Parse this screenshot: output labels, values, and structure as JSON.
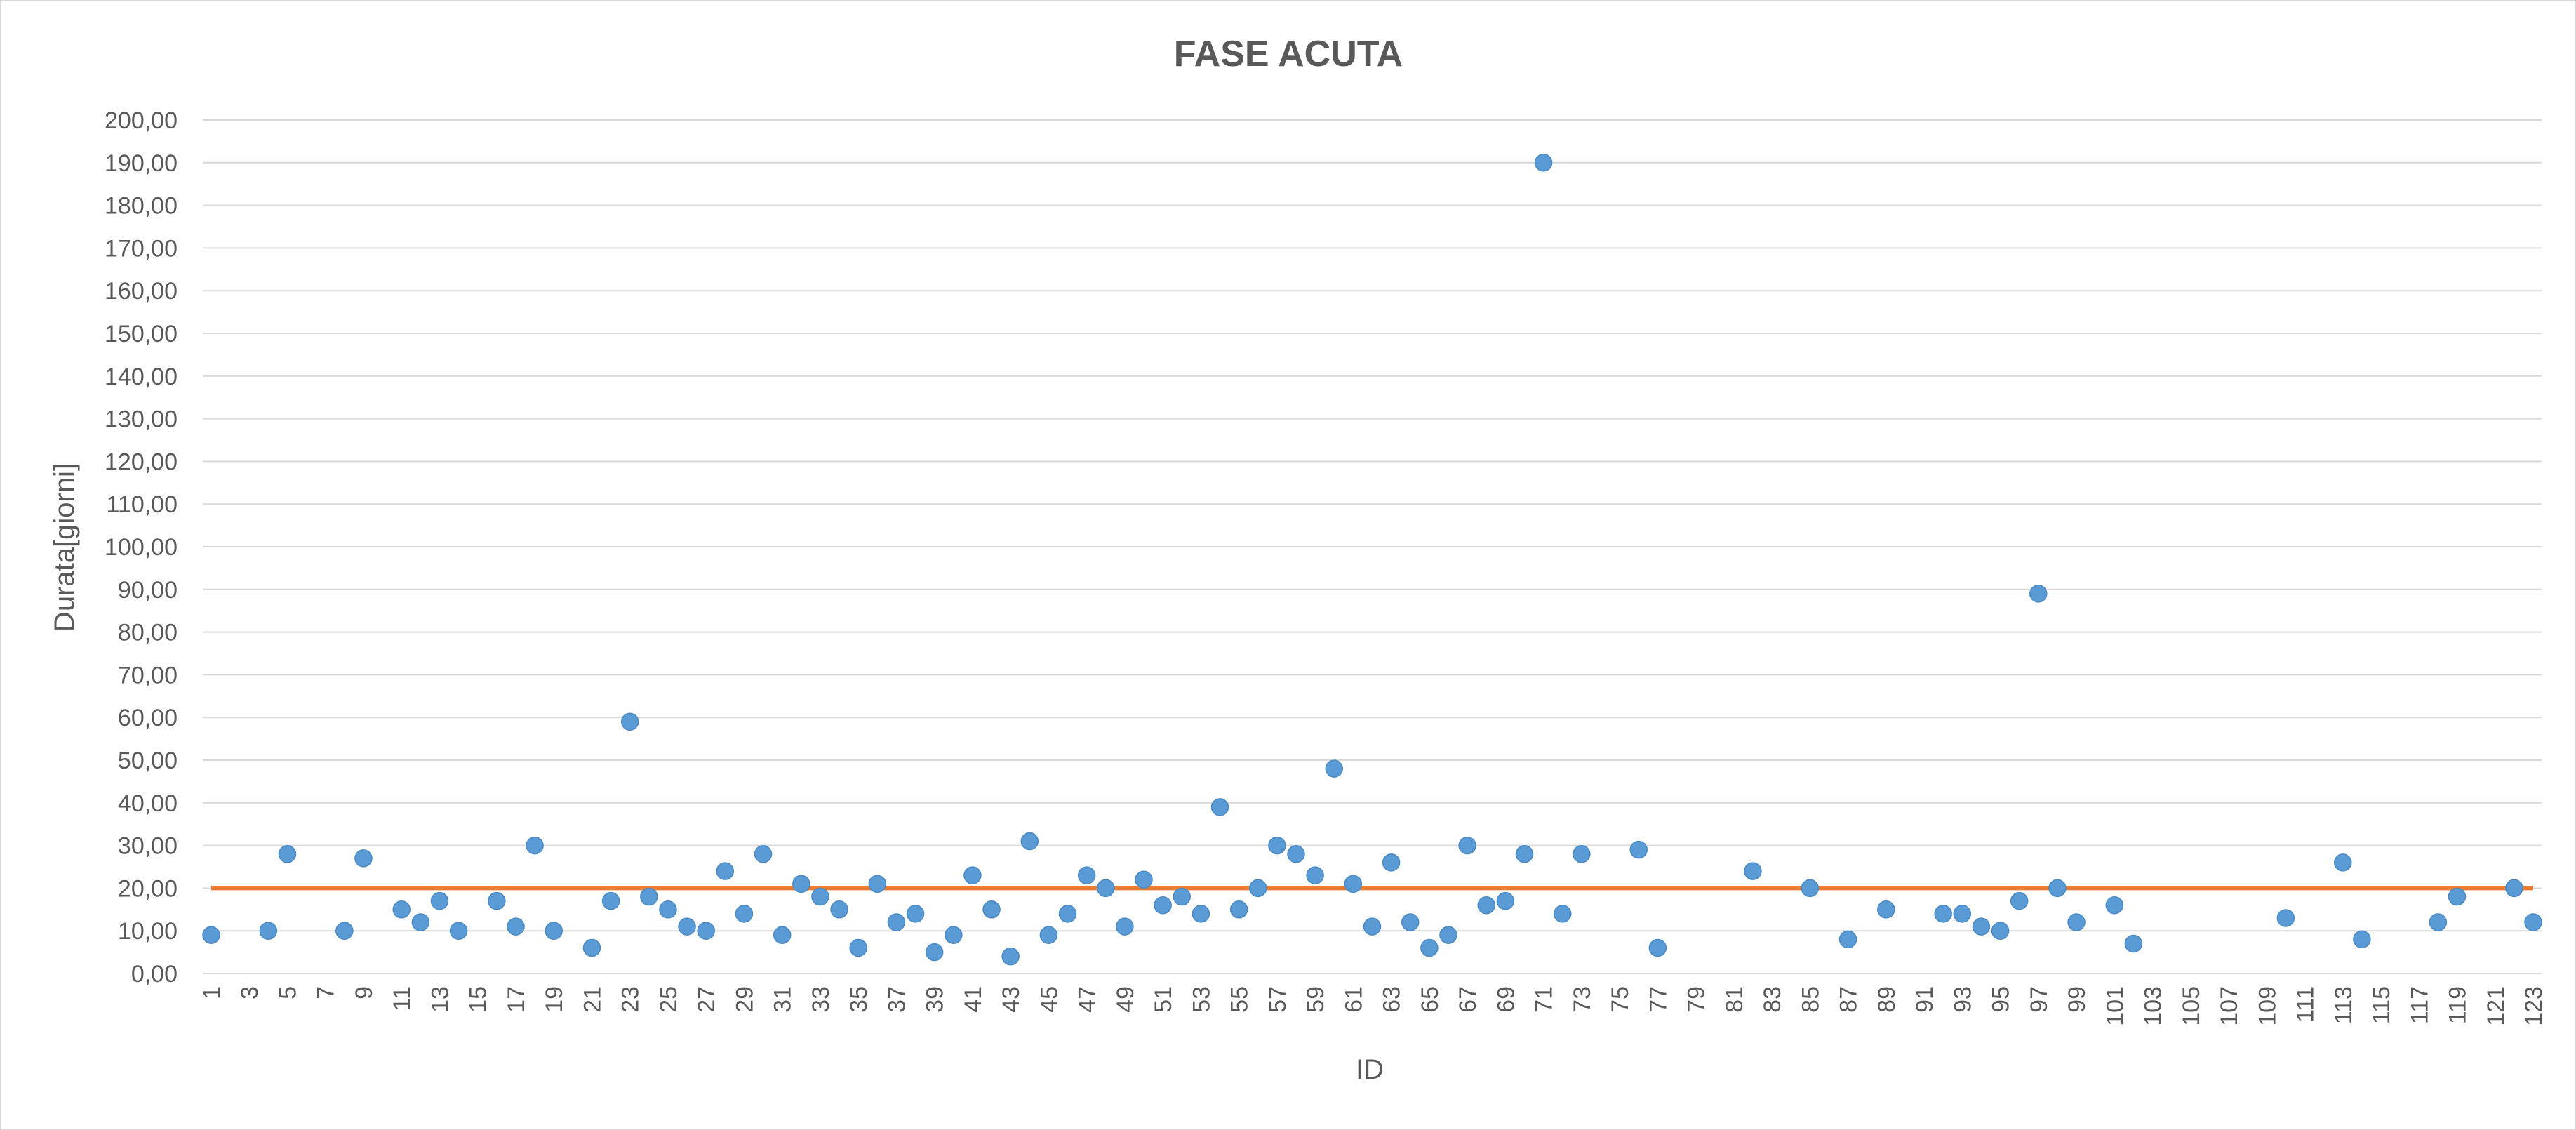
{
  "chart_data": {
    "type": "scatter",
    "title": "FASE ACUTA",
    "xlabel": "ID",
    "ylabel": "Durata[giorni]",
    "xlim": [
      1,
      123
    ],
    "ylim": [
      0,
      200
    ],
    "x_ticks": [
      1,
      3,
      5,
      7,
      9,
      11,
      13,
      15,
      17,
      19,
      21,
      23,
      25,
      27,
      29,
      31,
      33,
      35,
      37,
      39,
      41,
      43,
      45,
      47,
      49,
      51,
      53,
      55,
      57,
      59,
      61,
      63,
      65,
      67,
      69,
      71,
      73,
      75,
      77,
      79,
      81,
      83,
      85,
      87,
      89,
      91,
      93,
      95,
      97,
      99,
      101,
      103,
      105,
      107,
      109,
      111,
      113,
      115,
      117,
      119,
      121,
      123
    ],
    "y_ticks": [
      "0,00",
      "10,00",
      "20,00",
      "30,00",
      "40,00",
      "50,00",
      "60,00",
      "70,00",
      "80,00",
      "90,00",
      "100,00",
      "110,00",
      "120,00",
      "130,00",
      "140,00",
      "150,00",
      "160,00",
      "170,00",
      "180,00",
      "190,00",
      "200,00"
    ],
    "y_tick_values": [
      0,
      10,
      20,
      30,
      40,
      50,
      60,
      70,
      80,
      90,
      100,
      110,
      120,
      130,
      140,
      150,
      160,
      170,
      180,
      190,
      200
    ],
    "grid": true,
    "reference_line": {
      "y": 20,
      "color": "#ed7d31"
    },
    "marker_color": "#5b9bd5",
    "points": [
      [
        1,
        9
      ],
      [
        4,
        10
      ],
      [
        5,
        28
      ],
      [
        8,
        10
      ],
      [
        9,
        27
      ],
      [
        11,
        15
      ],
      [
        12,
        12
      ],
      [
        13,
        17
      ],
      [
        14,
        10
      ],
      [
        16,
        17
      ],
      [
        17,
        11
      ],
      [
        18,
        30
      ],
      [
        19,
        10
      ],
      [
        21,
        6
      ],
      [
        22,
        17
      ],
      [
        23,
        59
      ],
      [
        24,
        18
      ],
      [
        25,
        15
      ],
      [
        26,
        11
      ],
      [
        27,
        10
      ],
      [
        28,
        24
      ],
      [
        29,
        14
      ],
      [
        30,
        28
      ],
      [
        31,
        9
      ],
      [
        32,
        21
      ],
      [
        33,
        18
      ],
      [
        34,
        15
      ],
      [
        35,
        6
      ],
      [
        36,
        21
      ],
      [
        37,
        12
      ],
      [
        38,
        14
      ],
      [
        39,
        5
      ],
      [
        40,
        9
      ],
      [
        41,
        23
      ],
      [
        42,
        15
      ],
      [
        43,
        4
      ],
      [
        44,
        31
      ],
      [
        45,
        9
      ],
      [
        46,
        14
      ],
      [
        47,
        23
      ],
      [
        48,
        20
      ],
      [
        49,
        11
      ],
      [
        50,
        22
      ],
      [
        51,
        16
      ],
      [
        52,
        18
      ],
      [
        53,
        14
      ],
      [
        54,
        39
      ],
      [
        55,
        15
      ],
      [
        56,
        20
      ],
      [
        57,
        30
      ],
      [
        58,
        28
      ],
      [
        59,
        23
      ],
      [
        60,
        48
      ],
      [
        61,
        21
      ],
      [
        62,
        11
      ],
      [
        63,
        26
      ],
      [
        64,
        12
      ],
      [
        65,
        6
      ],
      [
        66,
        9
      ],
      [
        67,
        30
      ],
      [
        68,
        16
      ],
      [
        69,
        17
      ],
      [
        70,
        28
      ],
      [
        71,
        190
      ],
      [
        72,
        14
      ],
      [
        73,
        28
      ],
      [
        76,
        29
      ],
      [
        77,
        6
      ],
      [
        82,
        24
      ],
      [
        85,
        20
      ],
      [
        87,
        8
      ],
      [
        89,
        15
      ],
      [
        92,
        14
      ],
      [
        93,
        14
      ],
      [
        94,
        11
      ],
      [
        95,
        10
      ],
      [
        96,
        17
      ],
      [
        97,
        89
      ],
      [
        98,
        20
      ],
      [
        99,
        12
      ],
      [
        101,
        16
      ],
      [
        102,
        7
      ],
      [
        110,
        13
      ],
      [
        113,
        26
      ],
      [
        114,
        8
      ],
      [
        118,
        12
      ],
      [
        119,
        18
      ],
      [
        122,
        20
      ],
      [
        123,
        12
      ]
    ]
  }
}
